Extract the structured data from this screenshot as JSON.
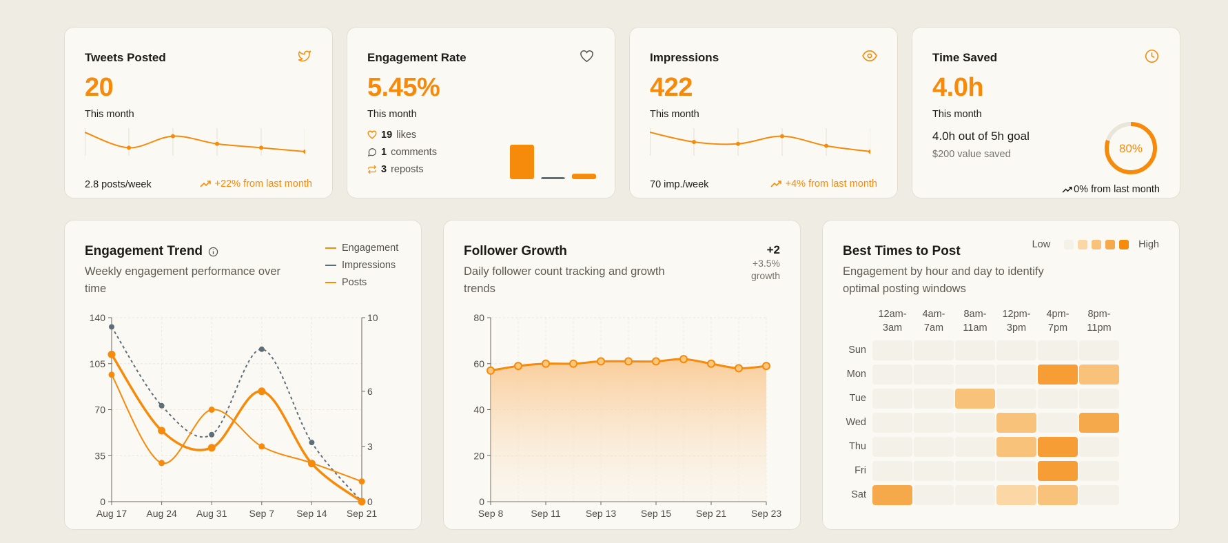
{
  "colors": {
    "accent": "#f58a0b",
    "impressions": "#5e6e79",
    "bg": "#efede3",
    "card": "#faf9f4"
  },
  "tweets": {
    "title": "Tweets Posted",
    "icon": "twitter-icon",
    "value": "20",
    "period": "This month",
    "rate": "2.8 posts/week",
    "trend": "+22% from last month",
    "sparkline": [
      24,
      20,
      23,
      21,
      20,
      19
    ]
  },
  "engagement": {
    "title": "Engagement Rate",
    "icon": "heart-icon",
    "value": "5.45%",
    "period": "This month",
    "likes_count": "19",
    "likes_label": "likes",
    "comments_count": "1",
    "comments_label": "comments",
    "reposts_count": "3",
    "reposts_label": "reposts",
    "bars": [
      19,
      1,
      3
    ]
  },
  "impressions": {
    "title": "Impressions",
    "icon": "eye-icon",
    "value": "422",
    "period": "This month",
    "rate": "70 imp./week",
    "trend": "+4% from last month",
    "sparkline": [
      96,
      86,
      84,
      92,
      82,
      76
    ]
  },
  "time_saved": {
    "title": "Time Saved",
    "icon": "clock-icon",
    "value": "4.0h",
    "period": "This month",
    "goal": "4.0h out of 5h goal",
    "value_saved": "$200 value saved",
    "progress_pct": 80,
    "progress_label": "80%",
    "trend": "0% from last month"
  },
  "engagement_trend": {
    "title": "Engagement Trend",
    "subtitle": "Weekly engagement performance over time",
    "legend": [
      {
        "label": "Engagement",
        "color": "#f58a0b"
      },
      {
        "label": "Impressions",
        "color": "#5e6e79"
      },
      {
        "label": "Posts",
        "color": "#f58a0b"
      }
    ]
  },
  "follower_growth": {
    "title": "Follower Growth",
    "subtitle": "Daily follower count tracking and growth trends",
    "delta": "+2",
    "delta_pct": "+3.5%",
    "delta_label": "growth"
  },
  "best_times": {
    "title": "Best Times to Post",
    "subtitle": "Engagement by hour and day to identify optimal posting windows",
    "legend_low": "Low",
    "legend_high": "High",
    "hours": [
      "12am-\n3am",
      "4am-\n7am",
      "8am-\n11am",
      "12pm-\n3pm",
      "4pm-\n7pm",
      "8pm-\n11pm"
    ],
    "days": [
      "Sun",
      "Mon",
      "Tue",
      "Wed",
      "Thu",
      "Fri",
      "Sat"
    ],
    "levels": [
      [
        0,
        0,
        0,
        0,
        0,
        0
      ],
      [
        0,
        0,
        0,
        0,
        4,
        2
      ],
      [
        0,
        0,
        2,
        0,
        0,
        0
      ],
      [
        0,
        0,
        0,
        2,
        0,
        3
      ],
      [
        0,
        0,
        0,
        2,
        4,
        0
      ],
      [
        0,
        0,
        0,
        0,
        4,
        0
      ],
      [
        3,
        0,
        0,
        1,
        2,
        0
      ]
    ]
  },
  "chart_data": [
    {
      "type": "line",
      "title": "Engagement Trend",
      "categories": [
        "Aug 17",
        "Aug 24",
        "Aug 31",
        "Sep 7",
        "Sep 14",
        "Sep 21"
      ],
      "y_left": {
        "ticks": [
          "0",
          "35",
          "70",
          "105",
          "140"
        ],
        "lim": [
          0,
          140
        ]
      },
      "y_right": {
        "ticks": [
          "0",
          "3",
          "6",
          "10"
        ],
        "lim": [
          0,
          10
        ]
      },
      "series": [
        {
          "name": "Engagement",
          "axis": "left",
          "values": [
            112,
            54,
            41,
            84,
            29,
            0
          ]
        },
        {
          "name": "Impressions",
          "axis": "left",
          "values": [
            133,
            73,
            51,
            116,
            45,
            0
          ]
        },
        {
          "name": "Posts",
          "axis": "right",
          "values": [
            6.9,
            2.1,
            5.0,
            3.0,
            2.1,
            1.1
          ]
        }
      ]
    },
    {
      "type": "area",
      "title": "Follower Growth",
      "x_tick_labels": [
        "Sep 8",
        "Sep 11",
        "Sep 13",
        "Sep 15",
        "Sep 21",
        "Sep 23"
      ],
      "y_ticks": [
        "0",
        "20",
        "40",
        "60",
        "80"
      ],
      "ylim": [
        0,
        80
      ],
      "values": [
        57,
        59,
        60,
        60,
        61,
        61,
        61,
        62,
        60,
        58,
        59
      ]
    }
  ]
}
